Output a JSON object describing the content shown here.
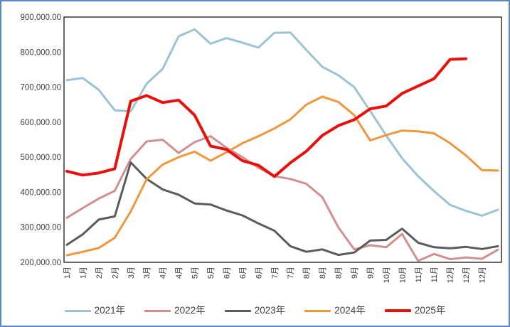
{
  "frame": {
    "background": "#FFFFFF",
    "border_color": "#5C87C6"
  },
  "chart_data": {
    "type": "line",
    "title": "",
    "xlabel": "",
    "ylabel": "",
    "grid": false,
    "legend_position": "bottom",
    "plot_border_color": "#262626",
    "x_labels": [
      "1月",
      "1月",
      "2月",
      "2月",
      "3月",
      "3月",
      "4月",
      "4月",
      "5月",
      "5月",
      "6月",
      "6月",
      "6月",
      "7月",
      "7月",
      "8月",
      "8月",
      "8月",
      "9月",
      "9月",
      "10月",
      "10月",
      "11月",
      "11月",
      "12月",
      "12月",
      "12月",
      ""
    ],
    "y_axis": {
      "min": 200000,
      "max": 900000,
      "step": 100000,
      "tick_labels": [
        "900,000.00",
        "800,000.00",
        "700,000.00",
        "600,000.00",
        "500,000.00",
        "400,000.00",
        "300,000.00",
        "200,000.00"
      ]
    },
    "series": [
      {
        "name": "2021年",
        "color": "#9CC3D5",
        "line_width": 3,
        "values": [
          720000,
          726000,
          692000,
          634000,
          631000,
          710000,
          752000,
          845000,
          865000,
          824000,
          840000,
          827000,
          813000,
          855000,
          856000,
          806000,
          758000,
          734000,
          700000,
          632000,
          562000,
          497000,
          446000,
          403000,
          364000,
          347000,
          333000,
          350000
        ]
      },
      {
        "name": "2022年",
        "color": "#D18F8F",
        "line_width": 3,
        "values": [
          327000,
          355000,
          382000,
          404000,
          495000,
          545000,
          550000,
          512000,
          543000,
          560000,
          527000,
          500000,
          470000,
          446000,
          438000,
          424000,
          386000,
          300000,
          237000,
          249000,
          243000,
          281000,
          204000,
          224000,
          209000,
          214000,
          210000,
          236000
        ]
      },
      {
        "name": "2023年",
        "color": "#5B5B5B",
        "line_width": 3,
        "values": [
          250000,
          280000,
          322000,
          331000,
          485000,
          438000,
          408000,
          393000,
          368000,
          365000,
          348000,
          334000,
          311000,
          290000,
          246000,
          230000,
          237000,
          221000,
          228000,
          262000,
          264000,
          296000,
          256000,
          243000,
          240000,
          244000,
          238000,
          246000
        ]
      },
      {
        "name": "2024年",
        "color": "#F0963C",
        "line_width": 3,
        "values": [
          220000,
          230000,
          241000,
          270000,
          345000,
          437000,
          479000,
          500000,
          516000,
          490000,
          514000,
          540000,
          560000,
          582000,
          608000,
          650000,
          673000,
          658000,
          620000,
          548000,
          563000,
          576000,
          574000,
          568000,
          540000,
          505000,
          463000,
          462000
        ]
      },
      {
        "name": "2025年",
        "color": "#E8100C",
        "line_width": 4,
        "values": [
          460000,
          449000,
          455000,
          467000,
          660000,
          676000,
          656000,
          663000,
          620000,
          532000,
          522000,
          490000,
          477000,
          445000,
          484000,
          517000,
          562000,
          590000,
          607000,
          638000,
          646000,
          682000,
          703000,
          724000,
          779000,
          781000,
          null,
          null
        ]
      }
    ]
  }
}
